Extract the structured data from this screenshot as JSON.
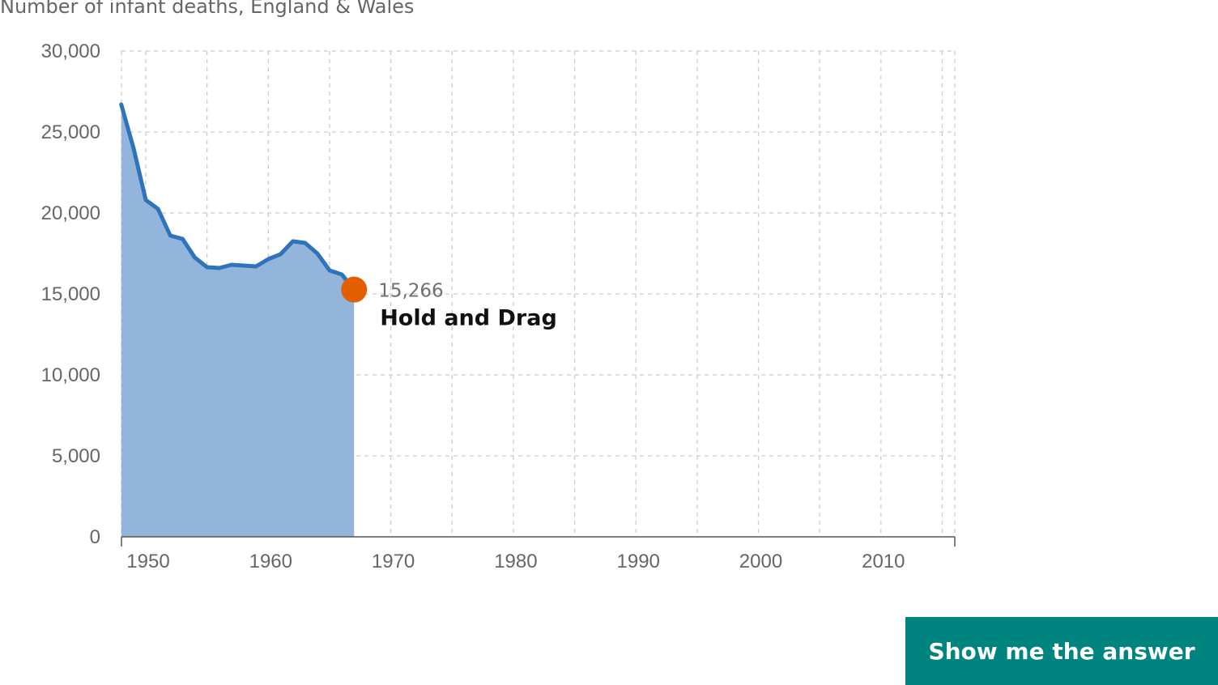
{
  "chart_title": "Number of infant deaths, England & Wales",
  "answer_button_label": "Show me the answer",
  "drag_hint": "Hold and Drag",
  "colors": {
    "line": "#2f73bb",
    "area": "#94b5db",
    "handle": "#e35e00",
    "grid": "#cccccc",
    "button": "#00847f",
    "axis_text": "#666666"
  },
  "chart_data": {
    "type": "area",
    "title": "Number of infant deaths, England & Wales",
    "xlabel": "",
    "ylabel": "",
    "xlim": [
      1948,
      2016
    ],
    "ylim": [
      0,
      30000
    ],
    "x_ticks": [
      1950,
      1960,
      1970,
      1980,
      1990,
      2000,
      2010
    ],
    "y_ticks": [
      0,
      5000,
      10000,
      15000,
      20000,
      25000,
      30000
    ],
    "y_tick_labels": [
      "0",
      "5,000",
      "10,000",
      "15,000",
      "20,000",
      "25,000",
      "30,000"
    ],
    "grid": true,
    "series": [
      {
        "x": [
          1948,
          1949,
          1950,
          1951,
          1952,
          1953,
          1954,
          1955,
          1956,
          1957,
          1958,
          1959,
          1960,
          1961,
          1962,
          1963,
          1964,
          1965,
          1966,
          1967
        ],
        "values": [
          26700,
          24000,
          20800,
          20250,
          18600,
          18400,
          17250,
          16650,
          16600,
          16800,
          16750,
          16700,
          17150,
          17450,
          18250,
          18150,
          17500,
          16450,
          16200,
          15266
        ]
      }
    ],
    "drag_point": {
      "x": 1967,
      "y": 15266,
      "label": "15,266"
    }
  }
}
